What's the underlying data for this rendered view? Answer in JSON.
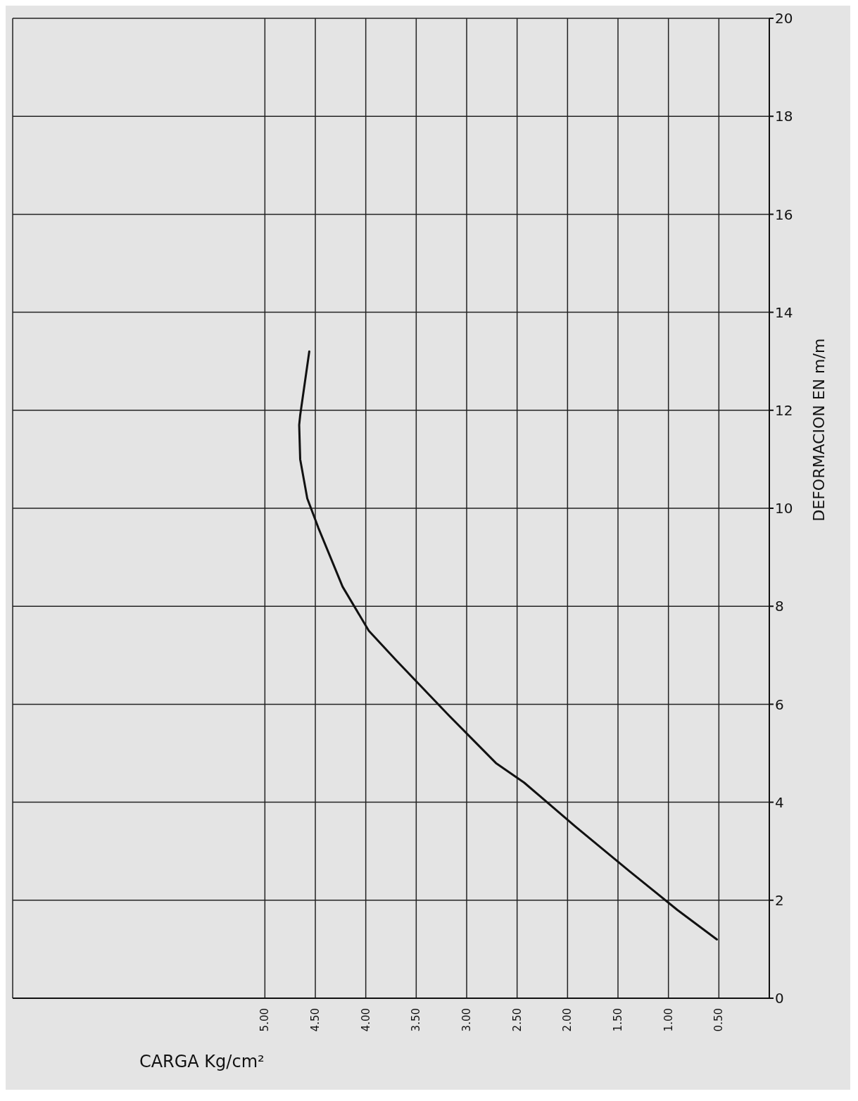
{
  "chart_data": {
    "type": "line",
    "xlabel": "CARGA Kg/cm²",
    "ylabel": "DEFORMACION EN m/m",
    "xlim": [
      7.5,
      0
    ],
    "xticks": [
      {
        "value": 5,
        "label": "5.00"
      },
      {
        "value": 4.5,
        "label": "4.50"
      },
      {
        "value": 4,
        "label": "4.00"
      },
      {
        "value": 3.5,
        "label": "3.50"
      },
      {
        "value": 3,
        "label": "3.00"
      },
      {
        "value": 2.5,
        "label": "2.50"
      },
      {
        "value": 2,
        "label": "2.00"
      },
      {
        "value": 1.5,
        "label": "1.50"
      },
      {
        "value": 1,
        "label": "1.00"
      },
      {
        "value": 0.5,
        "label": "0.50"
      }
    ],
    "ylim": [
      0,
      20
    ],
    "yticks": [
      0,
      2,
      4,
      6,
      8,
      10,
      12,
      14,
      16,
      18,
      20
    ],
    "grid": true,
    "marker": "none",
    "line_style": "solid",
    "series": [
      {
        "color": "#111111",
        "x": [
          4.56,
          4.65,
          4.66,
          4.65,
          4.58,
          4.47,
          4.23,
          3.97,
          3.7,
          3.19,
          2.71,
          2.43,
          1.92,
          1.39,
          0.91,
          0.52
        ],
        "values": [
          13.2,
          11.9,
          11.7,
          11.0,
          10.2,
          9.6,
          8.4,
          7.5,
          6.9,
          5.8,
          4.8,
          4.4,
          3.5,
          2.6,
          1.8,
          1.2
        ]
      }
    ]
  }
}
